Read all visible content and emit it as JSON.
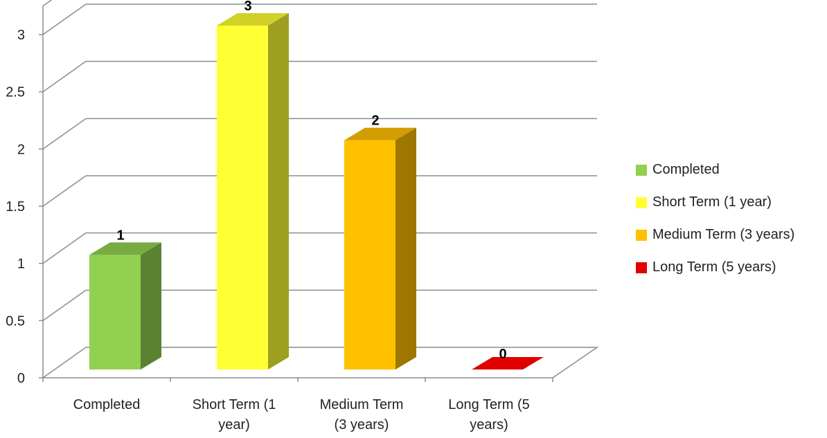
{
  "chart_data": {
    "type": "bar",
    "style": "3d-column",
    "categories": [
      "Completed",
      "Short Term (1 year)",
      "Medium Term (3 years)",
      "Long Term (5 years)"
    ],
    "category_tick_labels": [
      [
        "Completed"
      ],
      [
        "Short Term (1",
        "year)"
      ],
      [
        "Medium Term",
        "(3 years)"
      ],
      [
        "Long Term (5",
        "years)"
      ]
    ],
    "values": [
      1,
      3,
      2,
      0
    ],
    "data_labels": [
      "1",
      "3",
      "2",
      "0"
    ],
    "colors": [
      "#92D050",
      "#FFFF33",
      "#FFC000",
      "#E00000"
    ],
    "yticks": [
      "0",
      "0.5",
      "1",
      "1.5",
      "2",
      "2.5",
      "3"
    ],
    "ylim": [
      0,
      3.25
    ],
    "grid": true,
    "legend": {
      "position": "right",
      "items": [
        {
          "label": "Completed",
          "color": "#92D050"
        },
        {
          "label": "Short Term (1 year)",
          "color": "#FFFF33"
        },
        {
          "label": "Medium Term (3 years)",
          "color": "#FFC000"
        },
        {
          "label": "Long Term (5 years)",
          "color": "#E00000"
        }
      ]
    },
    "title": "",
    "xlabel": "",
    "ylabel": ""
  }
}
